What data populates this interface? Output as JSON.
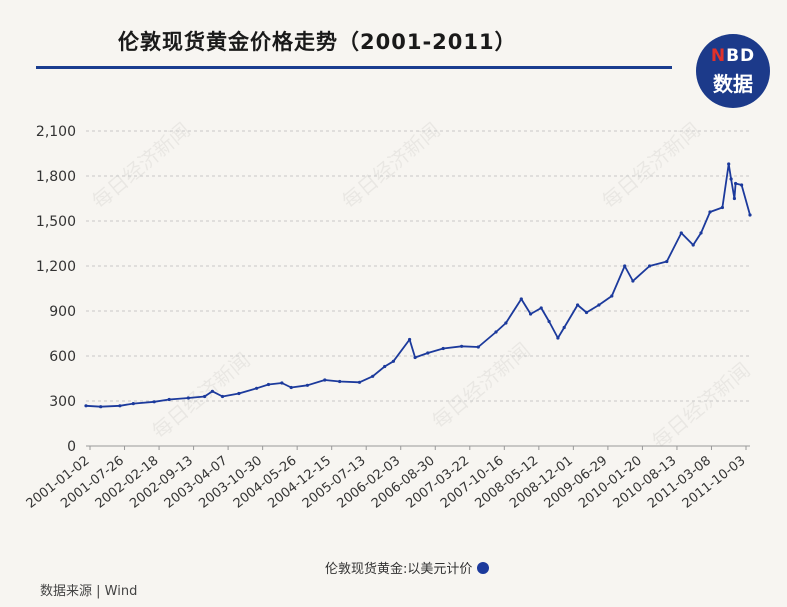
{
  "header": {
    "title": "伦敦现货黄金价格走势（2001-2011）",
    "logo_top": "BD",
    "logo_top_letter": "N",
    "logo_bottom": "数据"
  },
  "footer": {
    "source": "数据来源 | Wind"
  },
  "watermark_text": "每日经济新闻",
  "colors": {
    "accent": "#1a3d8f",
    "series": "#1c3a9c",
    "logo_red": "#e0312a"
  },
  "chart_data": {
    "type": "line",
    "title": "伦敦现货黄金价格走势（2001-2011）",
    "xlabel": "",
    "ylabel": "",
    "ylim": [
      0,
      2100
    ],
    "yticks": [
      0,
      300,
      600,
      900,
      1200,
      1500,
      1800,
      2100
    ],
    "ytick_labels": [
      "0",
      "300",
      "600",
      "900",
      "1,200",
      "1,500",
      "1,800",
      "2,100"
    ],
    "xtick_labels": [
      "2001-01-02",
      "2001-07-26",
      "2002-02-18",
      "2002-09-13",
      "2003-04-07",
      "2003-10-30",
      "2004-05-26",
      "2004-12-15",
      "2005-07-13",
      "2006-02-03",
      "2006-08-30",
      "2007-03-22",
      "2007-10-16",
      "2008-05-12",
      "2008-12-01",
      "2009-06-29",
      "2010-01-20",
      "2010-08-13",
      "2011-03-08",
      "2011-10-03"
    ],
    "grid": true,
    "legend_position": "bottom",
    "series": [
      {
        "name": "伦敦现货黄金:以美元计价",
        "color": "#1c3a9c",
        "x": [
          "2001-01-02",
          "2001-04-01",
          "2001-07-26",
          "2001-10-15",
          "2002-02-18",
          "2002-05-20",
          "2002-09-13",
          "2002-12-20",
          "2003-02-05",
          "2003-04-07",
          "2003-07-15",
          "2003-10-30",
          "2004-01-10",
          "2004-03-31",
          "2004-05-26",
          "2004-09-01",
          "2004-12-15",
          "2005-03-15",
          "2005-07-13",
          "2005-10-01",
          "2005-12-12",
          "2006-02-03",
          "2006-05-12",
          "2006-06-14",
          "2006-08-30",
          "2006-12-01",
          "2007-03-22",
          "2007-07-01",
          "2007-10-16",
          "2007-12-15",
          "2008-03-17",
          "2008-05-12",
          "2008-07-15",
          "2008-09-01",
          "2008-10-24",
          "2008-12-01",
          "2009-02-20",
          "2009-04-15",
          "2009-06-29",
          "2009-09-15",
          "2009-12-02",
          "2010-01-20",
          "2010-05-01",
          "2010-08-13",
          "2010-11-09",
          "2011-01-20",
          "2011-03-08",
          "2011-05-01",
          "2011-07-15",
          "2011-08-22",
          "2011-09-06",
          "2011-09-26",
          "2011-10-03",
          "2011-11-08",
          "2011-12-29"
        ],
        "values": [
          268,
          262,
          268,
          283,
          295,
          310,
          320,
          330,
          365,
          330,
          350,
          385,
          410,
          420,
          390,
          405,
          440,
          430,
          425,
          465,
          530,
          565,
          710,
          590,
          620,
          650,
          665,
          660,
          760,
          820,
          980,
          880,
          920,
          830,
          720,
          790,
          940,
          890,
          940,
          1000,
          1200,
          1100,
          1200,
          1230,
          1420,
          1340,
          1420,
          1560,
          1590,
          1880,
          1780,
          1650,
          1750,
          1740,
          1540
        ]
      }
    ]
  }
}
